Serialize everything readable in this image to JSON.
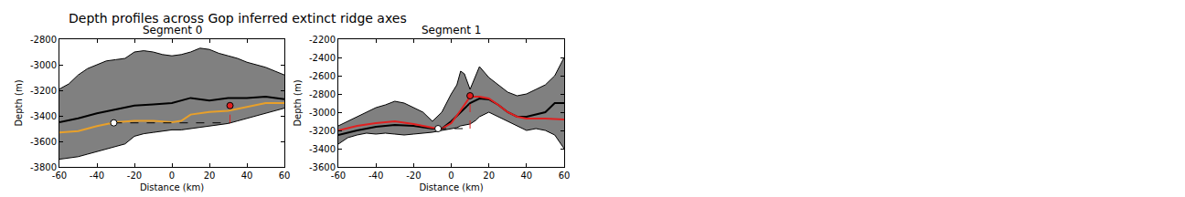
{
  "title": "Depth profiles across Gop inferred extinct ridge axes",
  "chart_data": [
    {
      "type": "line",
      "title": "Segment 0",
      "x_label": "Distance (km)",
      "y_label": "Depth (m)",
      "xlim": [
        -60,
        60
      ],
      "xticks": [
        -60,
        -40,
        -20,
        0,
        20,
        40,
        60
      ],
      "ylim": [
        -3800,
        -2800
      ],
      "yticks": [
        -3800,
        -3600,
        -3400,
        -3200,
        -3000,
        -2800
      ],
      "envelope": {
        "color": "#808080",
        "x": [
          -60,
          -55,
          -50,
          -45,
          -40,
          -35,
          -30,
          -25,
          -20,
          -15,
          -10,
          -5,
          0,
          5,
          10,
          15,
          20,
          25,
          30,
          35,
          40,
          45,
          50,
          55,
          60
        ],
        "upper": [
          -3190,
          -3150,
          -3080,
          -3030,
          -3000,
          -2970,
          -2960,
          -2950,
          -2900,
          -2890,
          -2900,
          -2920,
          -2930,
          -2920,
          -2900,
          -2870,
          -2880,
          -2910,
          -2930,
          -2950,
          -2980,
          -3000,
          -3020,
          -3050,
          -3080
        ],
        "lower": [
          -3740,
          -3730,
          -3720,
          -3700,
          -3680,
          -3660,
          -3640,
          -3620,
          -3560,
          -3540,
          -3530,
          -3520,
          -3510,
          -3510,
          -3500,
          -3490,
          -3480,
          -3470,
          -3460,
          -3440,
          -3420,
          -3400,
          -3380,
          -3360,
          -3340
        ]
      },
      "series": [
        {
          "color": "#000000",
          "line_style": "solid",
          "x": [
            -60,
            -50,
            -40,
            -30,
            -20,
            -10,
            0,
            10,
            20,
            30,
            40,
            50,
            60
          ],
          "values": [
            -3450,
            -3420,
            -3380,
            -3350,
            -3320,
            -3310,
            -3300,
            -3260,
            -3280,
            -3260,
            -3260,
            -3250,
            -3270
          ]
        },
        {
          "color": "#e8a02a",
          "line_style": "solid",
          "x": [
            -60,
            -50,
            -40,
            -30,
            -20,
            -10,
            0,
            5,
            10,
            20,
            30,
            40,
            50,
            60
          ],
          "values": [
            -3530,
            -3520,
            -3480,
            -3450,
            -3440,
            -3440,
            -3450,
            -3440,
            -3390,
            -3370,
            -3360,
            -3330,
            -3300,
            -3300
          ]
        },
        {
          "color": "#000000",
          "line_style": "dashed",
          "x": [
            -31,
            31
          ],
          "values": [
            -3455,
            -3455
          ]
        },
        {
          "color": "#e02020",
          "line_style": "dashed",
          "x": [
            31,
            31
          ],
          "values": [
            -3455,
            -3320
          ]
        }
      ],
      "points": [
        {
          "color": "#ffffff",
          "marker": "circle",
          "x": -31,
          "y": -3455
        },
        {
          "color": "#e02020",
          "marker": "circle",
          "x": 31,
          "y": -3320
        }
      ]
    },
    {
      "type": "line",
      "title": "Segment 1",
      "x_label": "Distance (km)",
      "y_label": "Depth (m)",
      "xlim": [
        -60,
        60
      ],
      "xticks": [
        -60,
        -40,
        -20,
        0,
        20,
        40,
        60
      ],
      "ylim": [
        -3600,
        -2200
      ],
      "yticks": [
        -3600,
        -3400,
        -3200,
        -3000,
        -2800,
        -2600,
        -2400,
        -2200
      ],
      "envelope": {
        "color": "#808080",
        "x": [
          -60,
          -55,
          -50,
          -45,
          -40,
          -35,
          -30,
          -25,
          -20,
          -15,
          -10,
          -5,
          0,
          3,
          5,
          7,
          10,
          13,
          15,
          20,
          25,
          30,
          35,
          40,
          45,
          50,
          55,
          60
        ],
        "upper": [
          -3150,
          -3100,
          -3050,
          -3000,
          -2950,
          -2920,
          -2880,
          -2900,
          -2950,
          -3000,
          -3100,
          -3000,
          -2800,
          -2700,
          -2550,
          -2580,
          -2750,
          -2600,
          -2500,
          -2620,
          -2700,
          -2780,
          -2820,
          -2800,
          -2750,
          -2700,
          -2600,
          -2400
        ],
        "lower": [
          -3350,
          -3280,
          -3250,
          -3230,
          -3240,
          -3230,
          -3240,
          -3250,
          -3240,
          -3230,
          -3220,
          -3200,
          -3180,
          -3170,
          -3150,
          -3140,
          -3130,
          -3090,
          -3050,
          -3000,
          -3050,
          -3100,
          -3150,
          -3200,
          -3180,
          -3200,
          -3250,
          -3400
        ]
      },
      "series": [
        {
          "color": "#000000",
          "line_style": "solid",
          "x": [
            -60,
            -50,
            -40,
            -30,
            -20,
            -10,
            -5,
            0,
            5,
            10,
            15,
            20,
            25,
            30,
            35,
            40,
            50,
            55,
            60
          ],
          "values": [
            -3250,
            -3200,
            -3160,
            -3140,
            -3150,
            -3180,
            -3180,
            -3100,
            -3000,
            -2900,
            -2850,
            -2860,
            -2920,
            -3000,
            -3050,
            -3050,
            -3000,
            -2900,
            -2900
          ]
        },
        {
          "color": "#e02020",
          "line_style": "solid",
          "x": [
            -60,
            -50,
            -40,
            -30,
            -20,
            -10,
            -5,
            0,
            5,
            10,
            15,
            20,
            25,
            30,
            35,
            40,
            50,
            60
          ],
          "values": [
            -3200,
            -3150,
            -3120,
            -3100,
            -3130,
            -3170,
            -3180,
            -3120,
            -2980,
            -2830,
            -2830,
            -2850,
            -2920,
            -3000,
            -3050,
            -3070,
            -3070,
            -3080
          ]
        },
        {
          "color": "#000000",
          "line_style": "dashed",
          "x": [
            -7,
            10
          ],
          "values": [
            -3180,
            -3180
          ]
        },
        {
          "color": "#e02020",
          "line_style": "dashed",
          "x": [
            10,
            10
          ],
          "values": [
            -3180,
            -2820
          ]
        }
      ],
      "points": [
        {
          "color": "#ffffff",
          "marker": "circle",
          "x": -7,
          "y": -3180
        },
        {
          "color": "#e02020",
          "marker": "circle",
          "x": 10,
          "y": -2820
        }
      ]
    }
  ]
}
